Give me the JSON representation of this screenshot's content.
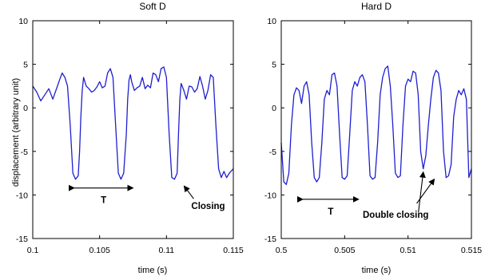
{
  "chart_data": [
    {
      "type": "line",
      "title": "Soft D",
      "xlabel": "time (s)",
      "ylabel": "displacement (arbitrary unit)",
      "xlim": [
        0.1,
        0.115
      ],
      "ylim": [
        -15,
        10
      ],
      "xticks": [
        "0.1",
        "0.105",
        "0.11",
        "0.115"
      ],
      "yticks": [
        "10",
        "5",
        "0",
        "-5",
        "-10",
        "-15"
      ],
      "line_color": "#1f1fd0",
      "series": [
        {
          "x": [
            0.1,
            0.1003,
            0.1006,
            0.1009,
            0.1012,
            0.1015,
            0.1018,
            0.102,
            0.1022,
            0.1024,
            0.1026,
            0.1028,
            0.103,
            0.1032,
            0.1034,
            0.1035,
            0.1036,
            0.1037,
            0.1038,
            0.104,
            0.1042,
            0.1044,
            0.1046,
            0.1048,
            0.105,
            0.1052,
            0.1054,
            0.1056,
            0.1058,
            0.106,
            0.1062,
            0.1064,
            0.1066,
            0.1068,
            0.107,
            0.1071,
            0.1072,
            0.1073,
            0.1074,
            0.1076,
            0.1078,
            0.108,
            0.1082,
            0.1084,
            0.1086,
            0.1088,
            0.109,
            0.1092,
            0.1094,
            0.1096,
            0.1098,
            0.11,
            0.1102,
            0.1104,
            0.1106,
            0.1108,
            0.1109,
            0.111,
            0.1111,
            0.1113,
            0.1115,
            0.1117,
            0.1119,
            0.1121,
            0.1123,
            0.1125,
            0.1127,
            0.1129,
            0.1131,
            0.1133,
            0.1135,
            0.1137,
            0.1139,
            0.1141,
            0.1143,
            0.1145,
            0.1147,
            0.115
          ],
          "y": [
            2.5,
            1.8,
            0.8,
            1.5,
            2.2,
            1.0,
            2.3,
            3.2,
            4.0,
            3.5,
            2.5,
            -2.0,
            -7.5,
            -8.2,
            -7.8,
            -5.0,
            -1.0,
            2.0,
            3.5,
            2.5,
            2.2,
            1.8,
            2.0,
            2.4,
            3.0,
            2.3,
            2.5,
            4.0,
            4.5,
            3.5,
            -2.0,
            -7.5,
            -8.2,
            -7.5,
            -3.0,
            1.0,
            3.2,
            3.8,
            3.0,
            2.0,
            2.3,
            2.5,
            3.5,
            2.2,
            2.6,
            2.3,
            4.0,
            3.8,
            3.0,
            4.5,
            4.7,
            3.5,
            -3.0,
            -8.0,
            -8.2,
            -7.5,
            -3.0,
            1.0,
            2.8,
            2.0,
            1.0,
            2.5,
            2.4,
            1.8,
            2.2,
            3.6,
            2.5,
            1.0,
            2.0,
            3.8,
            3.5,
            -2.0,
            -7.0,
            -8.0,
            -7.3,
            -8.0,
            -7.5,
            -7.0
          ]
        }
      ],
      "annotations": [
        {
          "text": "T",
          "type": "double-arrow",
          "x_from": 0.1031,
          "x_to": 0.1075,
          "y": -9.2
        },
        {
          "text": "Closing",
          "type": "arrow",
          "x": 0.1112,
          "y": -8.7
        }
      ]
    },
    {
      "type": "line",
      "title": "Hard D",
      "xlabel": "time (s)",
      "ylabel": "",
      "xlim": [
        0.5,
        0.515
      ],
      "ylim": [
        -15,
        10
      ],
      "xticks": [
        "0.5",
        "0.505",
        "0.51",
        "0.515"
      ],
      "yticks": [
        "10",
        "5",
        "0",
        "-5",
        "-10",
        "-15"
      ],
      "line_color": "#1f1fd0",
      "series": [
        {
          "x": [
            0.5,
            0.5002,
            0.5004,
            0.5006,
            0.5008,
            0.501,
            0.5012,
            0.5014,
            0.5016,
            0.5018,
            0.502,
            0.5022,
            0.5024,
            0.5026,
            0.5028,
            0.503,
            0.5032,
            0.5034,
            0.5036,
            0.5038,
            0.504,
            0.5042,
            0.5044,
            0.5046,
            0.5048,
            0.505,
            0.5052,
            0.5054,
            0.5056,
            0.5058,
            0.506,
            0.5062,
            0.5064,
            0.5066,
            0.5068,
            0.507,
            0.5072,
            0.5074,
            0.5076,
            0.5078,
            0.508,
            0.5082,
            0.5084,
            0.5086,
            0.5088,
            0.509,
            0.5092,
            0.5094,
            0.5096,
            0.5098,
            0.51,
            0.5102,
            0.5104,
            0.5106,
            0.5108,
            0.511,
            0.5112,
            0.5114,
            0.5116,
            0.5118,
            0.512,
            0.5122,
            0.5124,
            0.5126,
            0.5128,
            0.513,
            0.5132,
            0.5134,
            0.5136,
            0.5138,
            0.514,
            0.5142,
            0.5144,
            0.5146,
            0.5148,
            0.515
          ],
          "y": [
            -4.0,
            -8.5,
            -8.8,
            -7.5,
            -2.0,
            1.5,
            2.3,
            2.0,
            0.5,
            2.5,
            3.0,
            1.5,
            -4.0,
            -8.0,
            -8.5,
            -8.0,
            -4.0,
            1.0,
            2.0,
            1.5,
            3.8,
            4.0,
            2.5,
            -3.0,
            -8.0,
            -8.2,
            -7.8,
            -3.0,
            2.0,
            3.0,
            2.5,
            3.5,
            3.8,
            3.0,
            -2.0,
            -7.8,
            -8.2,
            -8.0,
            -4.0,
            1.5,
            3.5,
            4.5,
            4.8,
            2.5,
            -2.0,
            -7.5,
            -8.0,
            -7.8,
            -2.0,
            2.5,
            3.3,
            3.0,
            4.2,
            4.0,
            1.5,
            -5.0,
            -7.0,
            -5.5,
            -2.0,
            1.0,
            3.5,
            4.3,
            4.0,
            2.0,
            -5.0,
            -8.0,
            -7.8,
            -6.5,
            -1.0,
            1.0,
            2.0,
            1.5,
            2.2,
            1.0,
            -8.0,
            -7.0
          ]
        }
      ],
      "annotations": [
        {
          "text": "T",
          "type": "double-arrow",
          "x_from": 0.5017,
          "x_to": 0.5061,
          "y": -10.5
        },
        {
          "text": "Double closing",
          "type": "arrows",
          "targets": [
            {
              "x": 0.5112,
              "y": -7.0
            },
            {
              "x": 0.5122,
              "y": -8.0
            }
          ]
        }
      ]
    }
  ]
}
